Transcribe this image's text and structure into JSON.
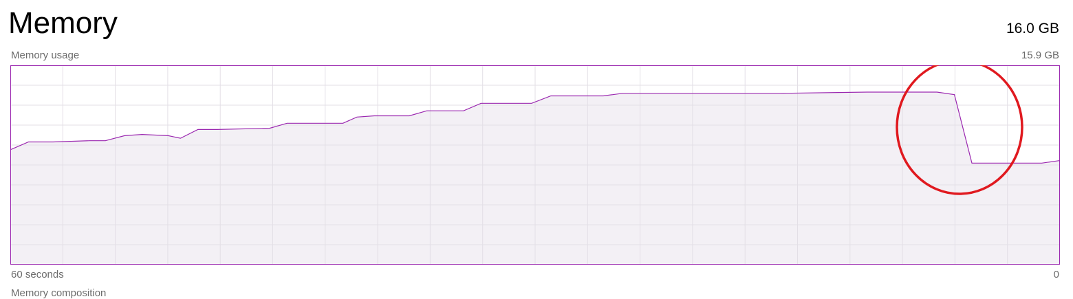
{
  "header": {
    "title": "Memory",
    "total": "16.0 GB"
  },
  "graph": {
    "label": "Memory usage",
    "max_label": "15.9 GB",
    "time_left": "60 seconds",
    "time_right": "0",
    "line_color": "#9b28b0",
    "fill_color": "#f3f0f5",
    "grid_color": "#e3dfe6",
    "annotation": {
      "shape": "circle",
      "color": "#e0191f"
    }
  },
  "footer": {
    "next_section_partial": "Memory composition"
  },
  "chart_data": {
    "type": "area",
    "xlabel": "",
    "ylabel": "",
    "xlim": [
      60,
      0
    ],
    "ylim": [
      0,
      15.9
    ],
    "grid": true,
    "series": [
      {
        "x": [
          60,
          59,
          57.6,
          55.5,
          54.6,
          53.5,
          52.5,
          51.0,
          50.3,
          49.3,
          48.2,
          45.2,
          44.2,
          42.0,
          41.0,
          40.2,
          39.2,
          37.2,
          36.2,
          34.1,
          33.1,
          31.2,
          30.2,
          29.1,
          28.0,
          26.1,
          25.0,
          21.0,
          16.0,
          11.0,
          7.0,
          6.0,
          5.0,
          4.0,
          1.0,
          0
        ],
        "y": [
          9.2,
          9.8,
          9.8,
          9.9,
          9.9,
          10.3,
          10.4,
          10.3,
          10.1,
          10.8,
          10.8,
          10.9,
          11.3,
          11.3,
          11.3,
          11.8,
          11.9,
          11.9,
          12.3,
          12.3,
          12.9,
          12.9,
          12.9,
          13.5,
          13.5,
          13.5,
          13.7,
          13.7,
          13.7,
          13.8,
          13.8,
          13.6,
          8.1,
          8.1,
          8.1,
          8.3
        ]
      }
    ]
  }
}
